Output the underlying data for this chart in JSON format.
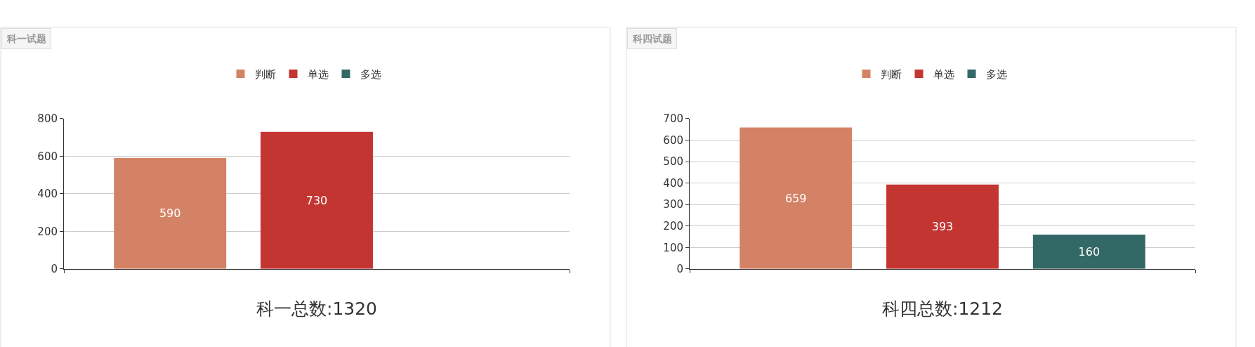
{
  "chart_data": [
    {
      "type": "bar",
      "title": "科一试题",
      "xlabel": "科一总数:1320",
      "categories": [
        null
      ],
      "series": [
        {
          "name": "判断",
          "color": "#d48265",
          "values": [
            590
          ],
          "value_labels": [
            "590"
          ]
        },
        {
          "name": "单选",
          "color": "#c23531",
          "values": [
            730
          ],
          "value_labels": [
            "730"
          ]
        },
        {
          "name": "多选",
          "color": "#326866",
          "values": [
            0
          ],
          "value_labels": [
            null
          ]
        }
      ],
      "ylim": [
        0,
        800
      ],
      "yticks": [
        0,
        200,
        400,
        600,
        800
      ],
      "grid": true,
      "legend": "top"
    },
    {
      "type": "bar",
      "title": "科四试题",
      "xlabel": "科四总数:1212",
      "categories": [
        null
      ],
      "series": [
        {
          "name": "判断",
          "color": "#d48265",
          "values": [
            659
          ]
        },
        {
          "name": "单选",
          "color": "#c23531",
          "values": [
            393
          ]
        },
        {
          "name": "多选",
          "color": "#326866",
          "values": [
            160
          ]
        }
      ],
      "ylim": [
        0,
        700
      ],
      "yticks": [
        0,
        100,
        200,
        300,
        400,
        500,
        600,
        700
      ],
      "grid": true,
      "legend": "top",
      "data_labels": true
    }
  ]
}
